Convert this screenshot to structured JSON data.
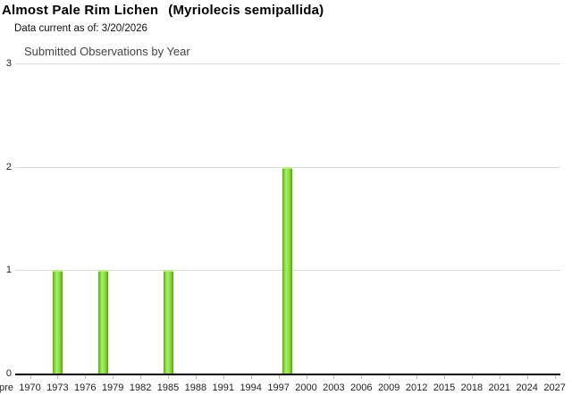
{
  "header": {
    "common_name": "Almost Pale Rim Lichen",
    "scientific_name": "(Myriolecis semipallida)",
    "data_current": "Data current as of: 3/20/2026"
  },
  "chart_data": {
    "type": "bar",
    "title": "Submitted Observations by Year",
    "x": [
      1973,
      1978,
      1985,
      1998
    ],
    "values": [
      1,
      1,
      1,
      2
    ],
    "xtick_labels": [
      "pre",
      "1970",
      "1973",
      "1976",
      "1979",
      "1982",
      "1985",
      "1988",
      "1991",
      "1994",
      "1997",
      "2000",
      "2003",
      "2006",
      "2009",
      "2012",
      "2015",
      "2018",
      "2021",
      "2024",
      "2027"
    ],
    "yticks": [
      "0",
      "1",
      "2",
      "3"
    ],
    "ylim": [
      0,
      3
    ],
    "grid": true,
    "legend": false,
    "bar_color": "#7ED02F",
    "bar_edge_color": "#509D0E",
    "bar_highlight_color": "#B9EF83",
    "gridline_color": "#DCDCDC",
    "axis_color": "#000000",
    "label_color": "#222222"
  }
}
